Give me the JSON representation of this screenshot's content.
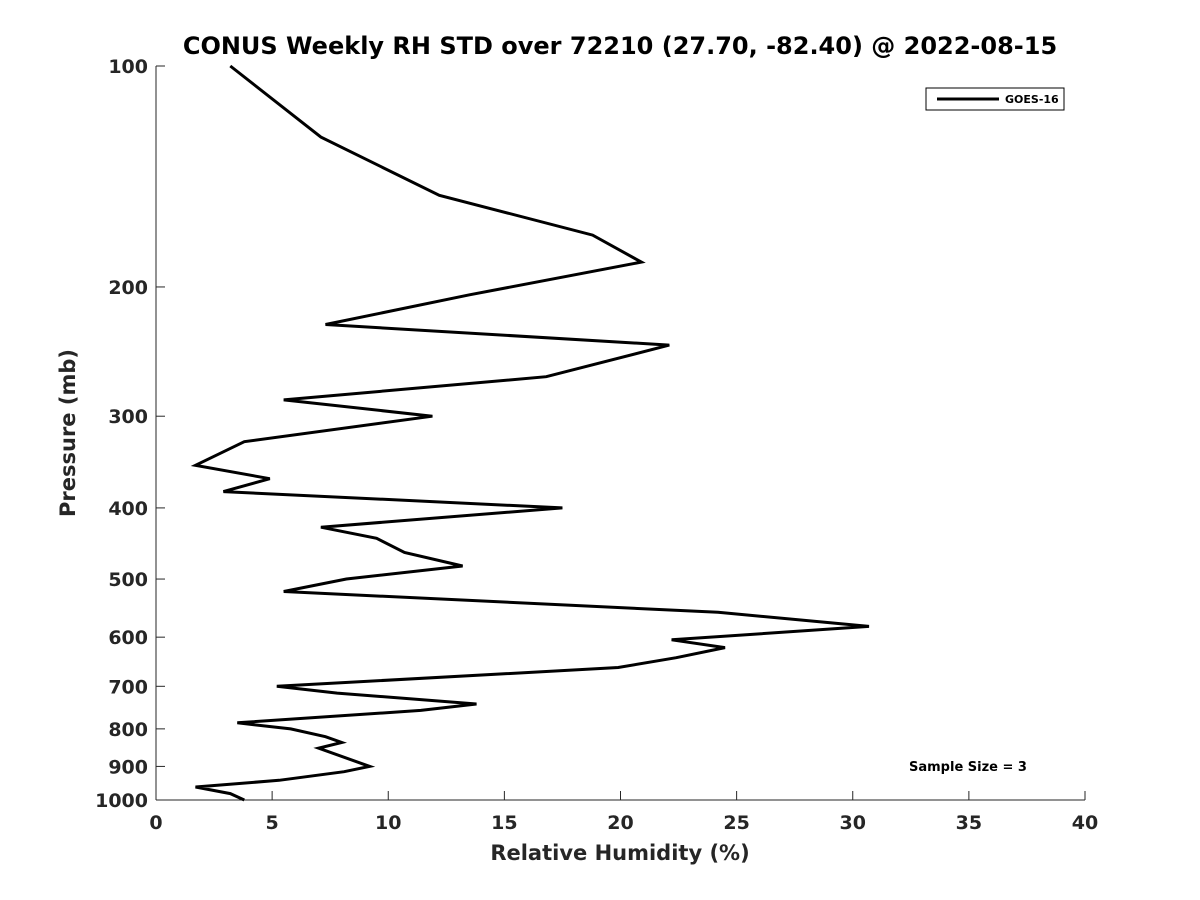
{
  "chart_data": {
    "type": "line",
    "title": "CONUS Weekly RH STD over 72210 (27.70, -82.40) @ 2022-08-15",
    "xlabel": "Relative Humidity (%)",
    "ylabel": "Pressure (mb)",
    "xlim": [
      0,
      40
    ],
    "ylim": [
      100,
      1000
    ],
    "yscale": "log",
    "yreversed": true,
    "xticks": [
      0,
      5,
      10,
      15,
      20,
      25,
      30,
      35,
      40
    ],
    "xtick_labels": [
      "0",
      "5",
      "10",
      "15",
      "20",
      "25",
      "30",
      "35",
      "40"
    ],
    "yticks": [
      100,
      200,
      300,
      400,
      500,
      600,
      700,
      800,
      900,
      1000
    ],
    "ytick_labels": [
      "100",
      "200",
      "300",
      "400",
      "500",
      "600",
      "700",
      "800",
      "900",
      "1000"
    ],
    "grid": false,
    "legend": {
      "position": "top-right",
      "entries": [
        "GOES-16"
      ]
    },
    "annotation": "Sample Size = 3",
    "series": [
      {
        "name": "GOES-16",
        "color": "#000000",
        "points": [
          [
            3.2,
            100
          ],
          [
            7.1,
            125
          ],
          [
            12.2,
            150
          ],
          [
            18.8,
            170
          ],
          [
            20.9,
            185
          ],
          [
            13.5,
            205
          ],
          [
            7.3,
            225
          ],
          [
            22.1,
            240
          ],
          [
            16.8,
            265
          ],
          [
            5.5,
            285
          ],
          [
            11.9,
            300
          ],
          [
            3.8,
            325
          ],
          [
            1.7,
            350
          ],
          [
            4.9,
            365
          ],
          [
            2.9,
            380
          ],
          [
            17.5,
            400
          ],
          [
            7.1,
            425
          ],
          [
            9.5,
            440
          ],
          [
            10.7,
            460
          ],
          [
            13.2,
            480
          ],
          [
            8.2,
            500
          ],
          [
            5.5,
            520
          ],
          [
            24.2,
            555
          ],
          [
            30.7,
            580
          ],
          [
            22.2,
            605
          ],
          [
            24.5,
            620
          ],
          [
            22.4,
            640
          ],
          [
            19.9,
            660
          ],
          [
            5.2,
            700
          ],
          [
            7.8,
            715
          ],
          [
            13.8,
            740
          ],
          [
            11.4,
            755
          ],
          [
            3.5,
            785
          ],
          [
            5.8,
            800
          ],
          [
            7.3,
            820
          ],
          [
            8.0,
            835
          ],
          [
            7.0,
            850
          ],
          [
            9.2,
            900
          ],
          [
            8.1,
            915
          ],
          [
            5.3,
            940
          ],
          [
            1.7,
            960
          ],
          [
            3.2,
            980
          ],
          [
            3.8,
            1000
          ]
        ]
      }
    ]
  }
}
